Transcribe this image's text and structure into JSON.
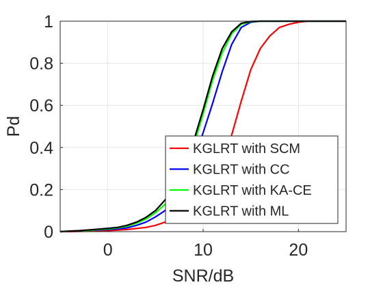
{
  "chart_data": {
    "type": "line",
    "title": "",
    "xlabel": "SNR/dB",
    "ylabel": "Pd",
    "xlim": [
      -5,
      25
    ],
    "ylim": [
      0,
      1
    ],
    "xticks": [
      0,
      10,
      20
    ],
    "yticks": [
      0,
      0.2,
      0.4,
      0.6,
      0.8,
      1
    ],
    "xtick_labels": [
      "0",
      "10",
      "20"
    ],
    "ytick_labels": [
      "0",
      "0.2",
      "0.4",
      "0.6",
      "0.8",
      "1"
    ],
    "grid": true,
    "legend_position": "bottom-right",
    "x": [
      -5,
      -4,
      -3,
      -2,
      -1,
      0,
      1,
      2,
      3,
      4,
      5,
      6,
      7,
      8,
      9,
      10,
      11,
      12,
      13,
      14,
      15,
      16,
      17,
      18,
      19,
      20,
      21,
      22,
      23,
      24,
      25
    ],
    "series": [
      {
        "name": "KGLRT with SCM",
        "color": "#ff0000",
        "values": [
          0,
          0,
          0.001,
          0.002,
          0.003,
          0.005,
          0.007,
          0.01,
          0.015,
          0.02,
          0.03,
          0.045,
          0.07,
          0.1,
          0.14,
          0.19,
          0.26,
          0.35,
          0.46,
          0.62,
          0.77,
          0.87,
          0.93,
          0.97,
          0.985,
          0.995,
          1,
          1,
          1,
          1,
          1
        ]
      },
      {
        "name": "KGLRT with CC",
        "color": "#0000ff",
        "values": [
          0,
          0.002,
          0.004,
          0.006,
          0.008,
          0.01,
          0.013,
          0.018,
          0.03,
          0.045,
          0.07,
          0.1,
          0.15,
          0.23,
          0.34,
          0.47,
          0.61,
          0.76,
          0.89,
          0.97,
          0.995,
          1,
          1,
          1,
          1,
          1,
          1,
          1,
          1,
          1,
          1
        ]
      },
      {
        "name": "KGLRT with KA-CE",
        "color": "#00ff00",
        "values": [
          0,
          0.002,
          0.004,
          0.006,
          0.01,
          0.013,
          0.018,
          0.026,
          0.04,
          0.06,
          0.09,
          0.13,
          0.19,
          0.28,
          0.41,
          0.56,
          0.72,
          0.85,
          0.94,
          0.985,
          0.998,
          1,
          1,
          1,
          1,
          1,
          1,
          1,
          1,
          1,
          1
        ]
      },
      {
        "name": "KGLRT with ML",
        "color": "#000000",
        "values": [
          0,
          0.003,
          0.005,
          0.008,
          0.012,
          0.016,
          0.02,
          0.03,
          0.045,
          0.068,
          0.1,
          0.15,
          0.21,
          0.3,
          0.43,
          0.58,
          0.74,
          0.87,
          0.95,
          0.99,
          0.999,
          1,
          1,
          1,
          1,
          1,
          1,
          1,
          1,
          1,
          1
        ]
      }
    ]
  }
}
